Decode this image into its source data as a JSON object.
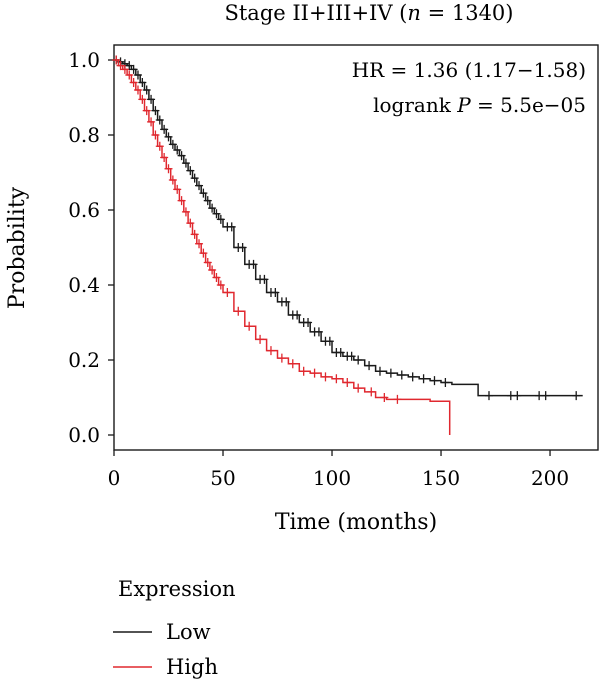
{
  "chart_data": {
    "type": "line",
    "title_prefix": "Stage II+III+IV (",
    "title_n_symbol": "n",
    "title_suffix": " = 1340)",
    "xlabel": "Time (months)",
    "ylabel": "Probability",
    "xlim": [
      0,
      222
    ],
    "ylim": [
      -0.04,
      1.04
    ],
    "xticks": [
      0,
      50,
      100,
      150,
      200
    ],
    "xtick_labels": [
      "0",
      "50",
      "100",
      "150",
      "200"
    ],
    "yticks": [
      0.0,
      0.2,
      0.4,
      0.6,
      0.8,
      1.0
    ],
    "ytick_labels": [
      "0.0",
      "0.2",
      "0.4",
      "0.6",
      "0.8",
      "1.0"
    ],
    "grid": false,
    "annotations": {
      "hr": "HR = 1.36 (1.17−1.58)",
      "logrank_prefix": "logrank ",
      "logrank_p_symbol": "P",
      "logrank_suffix": " = 5.5e−05"
    },
    "legend": {
      "title": "Expression",
      "placement": "below"
    },
    "series": [
      {
        "name": "Low",
        "color": "#1a1a1a",
        "x": [
          0,
          2,
          4,
          6,
          8,
          10,
          12,
          14,
          16,
          18,
          20,
          22,
          24,
          26,
          28,
          30,
          32,
          34,
          36,
          38,
          40,
          42,
          44,
          46,
          48,
          50,
          55,
          60,
          65,
          70,
          75,
          80,
          85,
          90,
          95,
          100,
          105,
          110,
          115,
          120,
          125,
          130,
          135,
          140,
          145,
          150,
          155,
          160,
          167,
          175,
          185,
          195,
          205,
          215
        ],
        "y": [
          1.0,
          0.995,
          0.99,
          0.985,
          0.975,
          0.96,
          0.94,
          0.92,
          0.895,
          0.865,
          0.84,
          0.815,
          0.795,
          0.775,
          0.76,
          0.745,
          0.725,
          0.705,
          0.685,
          0.665,
          0.645,
          0.625,
          0.605,
          0.59,
          0.575,
          0.555,
          0.5,
          0.455,
          0.415,
          0.38,
          0.355,
          0.32,
          0.3,
          0.275,
          0.25,
          0.22,
          0.21,
          0.2,
          0.185,
          0.17,
          0.165,
          0.16,
          0.155,
          0.15,
          0.145,
          0.14,
          0.135,
          0.135,
          0.105,
          0.105,
          0.105,
          0.105,
          0.105,
          0.105
        ],
        "censor_x": [
          1,
          3,
          5,
          7,
          9,
          11,
          13,
          15,
          17,
          19,
          21,
          23,
          25,
          27,
          29,
          31,
          33,
          35,
          37,
          39,
          41,
          43,
          45,
          47,
          49,
          52,
          54,
          57,
          59,
          62,
          64,
          67,
          69,
          72,
          74,
          77,
          79,
          82,
          84,
          87,
          89,
          92,
          94,
          97,
          99,
          102,
          104,
          107,
          109,
          112,
          117,
          122,
          127,
          132,
          137,
          142,
          147,
          152,
          172,
          182,
          185,
          195,
          198,
          212
        ]
      },
      {
        "name": "High",
        "color": "#e0282f",
        "x": [
          0,
          2,
          4,
          6,
          8,
          10,
          12,
          14,
          16,
          18,
          20,
          22,
          24,
          26,
          28,
          30,
          32,
          34,
          36,
          38,
          40,
          42,
          44,
          46,
          48,
          50,
          55,
          60,
          65,
          70,
          75,
          80,
          85,
          90,
          95,
          100,
          105,
          110,
          115,
          120,
          125,
          130,
          135,
          140,
          145,
          150,
          154,
          154
        ],
        "y": [
          1.0,
          0.985,
          0.975,
          0.96,
          0.94,
          0.92,
          0.895,
          0.865,
          0.835,
          0.8,
          0.77,
          0.74,
          0.71,
          0.68,
          0.655,
          0.625,
          0.595,
          0.565,
          0.535,
          0.51,
          0.485,
          0.46,
          0.44,
          0.42,
          0.4,
          0.38,
          0.33,
          0.29,
          0.255,
          0.225,
          0.205,
          0.19,
          0.17,
          0.165,
          0.155,
          0.15,
          0.14,
          0.125,
          0.115,
          0.1,
          0.095,
          0.095,
          0.095,
          0.095,
          0.09,
          0.09,
          0.09,
          0.0
        ],
        "censor_x": [
          1,
          3,
          5,
          7,
          9,
          11,
          13,
          15,
          17,
          19,
          21,
          23,
          25,
          27,
          29,
          31,
          33,
          35,
          37,
          39,
          41,
          43,
          45,
          47,
          49,
          52,
          57,
          62,
          67,
          72,
          77,
          82,
          87,
          92,
          97,
          102,
          107,
          112,
          118,
          124,
          130
        ]
      }
    ]
  }
}
